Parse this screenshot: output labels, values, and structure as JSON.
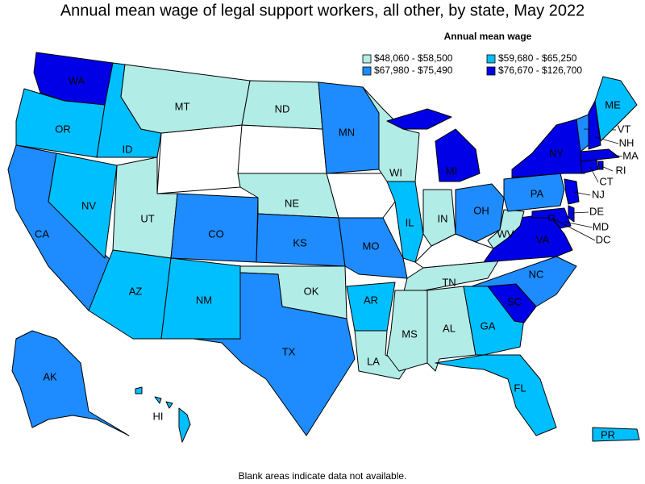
{
  "title": "Annual mean wage of legal support workers, all other, by state, May 2022",
  "legend": {
    "title": "Annual mean wage",
    "items": [
      {
        "label": "$48,060 - $58,500",
        "color": "#b2ece6"
      },
      {
        "label": "$59,680 - $65,250",
        "color": "#00bfff"
      },
      {
        "label": "$67,980 - $75,490",
        "color": "#1e8cff"
      },
      {
        "label": "$76,670 - $126,700",
        "color": "#0000e6"
      }
    ]
  },
  "states": [
    {
      "abbr": "WA",
      "color": "#0000e6"
    },
    {
      "abbr": "OR",
      "color": "#00bfff"
    },
    {
      "abbr": "CA",
      "color": "#1e8cff"
    },
    {
      "abbr": "NV",
      "color": "#00bfff"
    },
    {
      "abbr": "ID",
      "color": "#00bfff"
    },
    {
      "abbr": "MT",
      "color": "#b2ece6"
    },
    {
      "abbr": "UT",
      "color": "#b2ece6"
    },
    {
      "abbr": "AZ",
      "color": "#00bfff"
    },
    {
      "abbr": "CO",
      "color": "#1e8cff"
    },
    {
      "abbr": "NM",
      "color": "#00bfff"
    },
    {
      "abbr": "ND",
      "color": "#b2ece6"
    },
    {
      "abbr": "NE",
      "color": "#b2ece6"
    },
    {
      "abbr": "KS",
      "color": "#1e8cff"
    },
    {
      "abbr": "OK",
      "color": "#b2ece6"
    },
    {
      "abbr": "TX",
      "color": "#1e8cff"
    },
    {
      "abbr": "MN",
      "color": "#1e8cff"
    },
    {
      "abbr": "MO",
      "color": "#1e8cff"
    },
    {
      "abbr": "WI",
      "color": "#b2ece6"
    },
    {
      "abbr": "IL",
      "color": "#00bfff"
    },
    {
      "abbr": "IN",
      "color": "#b2ece6"
    },
    {
      "abbr": "MI",
      "color": "#0000e6"
    },
    {
      "abbr": "OH",
      "color": "#1e8cff"
    },
    {
      "abbr": "TN",
      "color": "#b2ece6"
    },
    {
      "abbr": "AR",
      "color": "#00bfff"
    },
    {
      "abbr": "LA",
      "color": "#b2ece6"
    },
    {
      "abbr": "MS",
      "color": "#b2ece6"
    },
    {
      "abbr": "AL",
      "color": "#b2ece6"
    },
    {
      "abbr": "GA",
      "color": "#00bfff"
    },
    {
      "abbr": "FL",
      "color": "#00bfff"
    },
    {
      "abbr": "SC",
      "color": "#0000e6"
    },
    {
      "abbr": "NC",
      "color": "#1e8cff"
    },
    {
      "abbr": "VA",
      "color": "#0000e6"
    },
    {
      "abbr": "WV",
      "color": "#b2ece6"
    },
    {
      "abbr": "PA",
      "color": "#1e8cff"
    },
    {
      "abbr": "NY",
      "color": "#0000e6"
    },
    {
      "abbr": "NJ",
      "color": "#0000e6"
    },
    {
      "abbr": "DE",
      "color": "#0000e6"
    },
    {
      "abbr": "MD",
      "color": "#0000e6"
    },
    {
      "abbr": "DC",
      "color": "#0000e6"
    },
    {
      "abbr": "CT",
      "color": "#0000e6"
    },
    {
      "abbr": "RI",
      "color": "#0000e6"
    },
    {
      "abbr": "MA",
      "color": "#0000e6"
    },
    {
      "abbr": "VT",
      "color": "#1e8cff"
    },
    {
      "abbr": "NH",
      "color": "#0000e6"
    },
    {
      "abbr": "ME",
      "color": "#00bfff"
    },
    {
      "abbr": "AK",
      "color": "#1e8cff"
    },
    {
      "abbr": "HI",
      "color": "#00bfff"
    },
    {
      "abbr": "PR",
      "color": "#00bfff"
    }
  ],
  "footnote": "Blank areas indicate data not available."
}
